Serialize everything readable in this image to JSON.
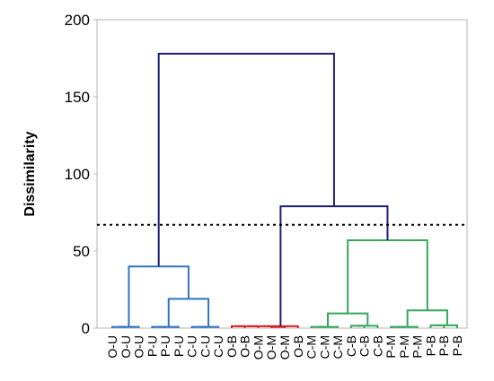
{
  "chart_data": {
    "type": "dendrogram",
    "ylabel": "Dissimilarity",
    "ylim": [
      0,
      200
    ],
    "yticks": [
      0,
      50,
      100,
      150,
      200
    ],
    "cut_line": 67,
    "leaves": [
      "O-U",
      "O-U",
      "O-U",
      "P-U",
      "P-U",
      "P-U",
      "C-U",
      "C-U",
      "C-U",
      "O-B",
      "O-B",
      "O-M",
      "O-M",
      "O-M",
      "O-B",
      "C-M",
      "C-M",
      "C-M",
      "C-B",
      "C-B",
      "C-B",
      "P-M",
      "P-M",
      "P-M",
      "P-B",
      "P-B",
      "P-B"
    ],
    "merges": [
      {
        "id": "n1",
        "left": 0,
        "right": 1,
        "height": 0.8
      },
      {
        "id": "n2",
        "left": "n1",
        "right": 2,
        "height": 0.8
      },
      {
        "id": "n3",
        "left": 3,
        "right": 4,
        "height": 0.8
      },
      {
        "id": "n4",
        "left": "n3",
        "right": 5,
        "height": 0.8
      },
      {
        "id": "n5",
        "left": 6,
        "right": 7,
        "height": 0.8
      },
      {
        "id": "n6",
        "left": "n5",
        "right": 8,
        "height": 0.8
      },
      {
        "id": "n7",
        "left": "n4",
        "right": "n6",
        "height": 19
      },
      {
        "id": "n8",
        "left": "n2",
        "right": "n7",
        "height": 40
      },
      {
        "id": "n9",
        "left": 9,
        "right": 10,
        "height": 1.2
      },
      {
        "id": "n10",
        "left": "n9",
        "right": 11,
        "height": 1.2
      },
      {
        "id": "n11",
        "left": 12,
        "right": 13,
        "height": 0.8
      },
      {
        "id": "n12",
        "left": "n10",
        "right": "n11",
        "height": 1.2
      },
      {
        "id": "n13",
        "left": "n12",
        "right": 14,
        "height": 1.2
      },
      {
        "id": "n14",
        "left": 15,
        "right": 16,
        "height": 0.8
      },
      {
        "id": "n15",
        "left": "n14",
        "right": 17,
        "height": 0.8
      },
      {
        "id": "n16",
        "left": 18,
        "right": 19,
        "height": 1.5
      },
      {
        "id": "n17",
        "left": "n16",
        "right": 20,
        "height": 1.5
      },
      {
        "id": "n18",
        "left": "n15",
        "right": "n17",
        "height": 9.5
      },
      {
        "id": "n19",
        "left": 21,
        "right": 22,
        "height": 0.8
      },
      {
        "id": "n20",
        "left": "n19",
        "right": 23,
        "height": 0.8
      },
      {
        "id": "n21",
        "left": 24,
        "right": 25,
        "height": 1.8
      },
      {
        "id": "n22",
        "left": "n21",
        "right": 26,
        "height": 1.8
      },
      {
        "id": "n23",
        "left": "n20",
        "right": "n22",
        "height": 11.5
      },
      {
        "id": "n24",
        "left": "n18",
        "right": "n23",
        "height": 57
      },
      {
        "id": "n25",
        "left": "n13",
        "right": "n24",
        "height": 79
      },
      {
        "id": "n26",
        "left": "n8",
        "right": "n25",
        "height": 178
      }
    ],
    "colors": {
      "cluster_unaltered": "#2e75c4",
      "cluster_burial": "#e02020",
      "cluster_meat": "#36a65d",
      "upper_links": "#1c1c7a",
      "cut_line": "#000000",
      "frame": "#b5b5b5"
    },
    "cluster_color_by_merge": {
      "n1": "cluster_unaltered",
      "n2": "cluster_unaltered",
      "n3": "cluster_unaltered",
      "n4": "cluster_unaltered",
      "n5": "cluster_unaltered",
      "n6": "cluster_unaltered",
      "n7": "cluster_unaltered",
      "n8": "cluster_unaltered",
      "n9": "cluster_burial",
      "n10": "cluster_burial",
      "n11": "cluster_burial",
      "n12": "cluster_burial",
      "n13": "cluster_burial",
      "n14": "cluster_meat",
      "n15": "cluster_meat",
      "n16": "cluster_meat",
      "n17": "cluster_meat",
      "n18": "cluster_meat",
      "n19": "cluster_meat",
      "n20": "cluster_meat",
      "n21": "cluster_meat",
      "n22": "cluster_meat",
      "n23": "cluster_meat",
      "n24": "cluster_meat",
      "n25": "upper_links",
      "n26": "upper_links"
    }
  }
}
